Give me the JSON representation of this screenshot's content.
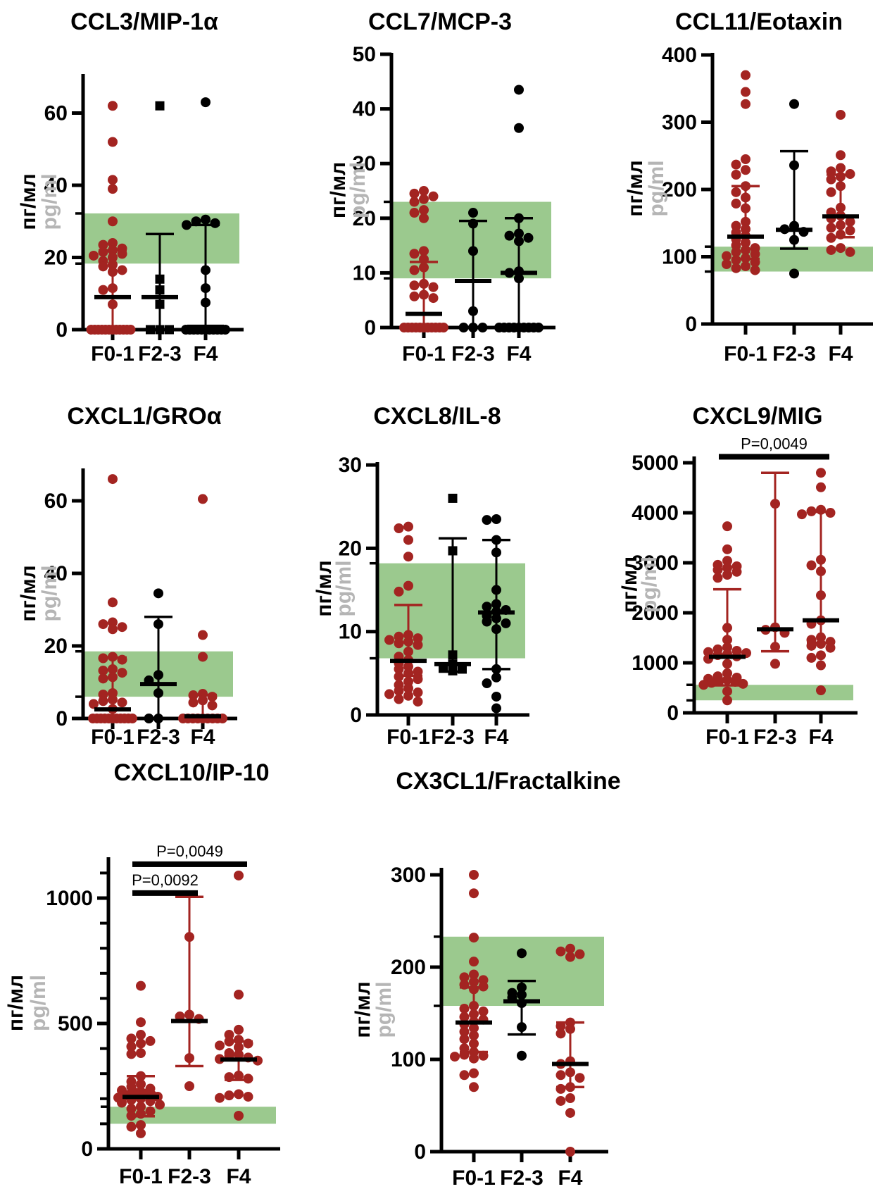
{
  "colors": {
    "red": "#a32421",
    "black": "#000000",
    "band_green": "#9bc98e",
    "gray_label": "#b5b5b5",
    "axis": "#000000"
  },
  "y_axis_label": {
    "ru": "пг/мл",
    "en": "pg/ml"
  },
  "x_categories": [
    "F0-1",
    "F2-3",
    "F4"
  ],
  "chart_data": [
    {
      "id": "ccl3",
      "type": "scatter",
      "title": "CCL3/MIP-1α",
      "ylim": [
        0,
        70
      ],
      "yticks": [
        0,
        20,
        40,
        60
      ],
      "reference_band": [
        18.3,
        32.2
      ],
      "p_annotations": [],
      "groups": [
        {
          "category": "F0-1",
          "marker": "circle",
          "color": "red",
          "values": [
            62,
            52,
            41.5,
            39,
            30,
            24,
            23.5,
            22.5,
            22,
            21.5,
            21,
            20.5,
            20,
            19,
            18,
            17.5,
            16.5,
            16,
            11.5,
            11,
            7,
            0,
            0,
            0,
            0,
            0,
            0,
            0,
            0,
            0,
            0,
            0,
            0
          ],
          "median": 9,
          "q1": 0,
          "q3": 22
        },
        {
          "category": "F2-3",
          "marker": "square",
          "color": "black",
          "values": [
            62,
            14,
            11,
            7,
            0,
            0,
            0
          ],
          "median": 9,
          "q1": 0,
          "q3": 26.5
        },
        {
          "category": "F4",
          "marker": "circle",
          "color": "black",
          "values": [
            63,
            30.5,
            30,
            29.5,
            29,
            16.5,
            11.5,
            7.5,
            0,
            0,
            0,
            0,
            0,
            0,
            0,
            0,
            0,
            0,
            0
          ],
          "median": 0.8,
          "q1": 0,
          "q3": 29
        }
      ]
    },
    {
      "id": "ccl7",
      "type": "scatter",
      "title": "CCL7/MCP-3",
      "ylim": [
        0,
        50
      ],
      "yticks": [
        0,
        10,
        20,
        30,
        40,
        50
      ],
      "reference_band": [
        9,
        23
      ],
      "p_annotations": [],
      "groups": [
        {
          "category": "F0-1",
          "marker": "circle",
          "color": "red",
          "values": [
            25,
            24.5,
            24,
            23.5,
            23,
            21.5,
            21,
            20,
            14,
            13.5,
            12.5,
            11,
            10.5,
            8,
            7.7,
            7.4,
            6,
            5.7,
            5.4,
            0,
            0,
            0,
            0,
            0,
            0,
            0,
            0,
            0,
            0,
            0
          ],
          "median": 2.5,
          "q1": 0,
          "q3": 12
        },
        {
          "category": "F2-3",
          "marker": "circle",
          "color": "black",
          "values": [
            21,
            19,
            14,
            3,
            0,
            0,
            0
          ],
          "median": 8.5,
          "q1": 0,
          "q3": 19.5
        },
        {
          "category": "F4",
          "marker": "circle",
          "color": "black",
          "values": [
            43.5,
            36.5,
            20,
            17.2,
            16.8,
            16.4,
            15.8,
            10.3,
            10,
            9,
            0,
            0,
            0,
            0,
            0,
            0,
            0,
            0,
            0
          ],
          "median": 10,
          "q1": 0,
          "q3": 20
        }
      ]
    },
    {
      "id": "ccl11",
      "type": "scatter",
      "title": "CCL11/Eotaxin",
      "ylim": [
        0,
        400
      ],
      "yticks": [
        0,
        100,
        200,
        300,
        400
      ],
      "reference_band": [
        78,
        115
      ],
      "p_annotations": [],
      "groups": [
        {
          "category": "F0-1",
          "marker": "circle",
          "color": "red",
          "values": [
            370,
            345,
            327,
            245,
            237,
            229,
            222,
            205,
            196,
            188,
            179,
            172,
            152,
            146,
            141,
            136,
            131,
            126,
            121,
            117,
            113,
            110,
            107,
            104,
            101,
            98,
            95,
            92,
            89,
            86,
            83,
            80
          ],
          "median": 130,
          "q1": 97,
          "q3": 205
        },
        {
          "category": "F2-3",
          "marker": "circle",
          "color": "black",
          "values": [
            327,
            236,
            146,
            141,
            137,
            125,
            75
          ],
          "median": 140,
          "q1": 112,
          "q3": 257
        },
        {
          "category": "F4",
          "marker": "circle",
          "color": "red",
          "values": [
            311,
            251,
            232,
            227,
            223,
            219,
            215,
            205,
            196,
            173,
            166,
            161,
            157,
            152,
            147,
            143,
            139,
            133,
            128,
            113,
            110,
            107
          ],
          "median": 160,
          "q1": 129,
          "q3": 222
        }
      ]
    },
    {
      "id": "cxcl1",
      "type": "scatter",
      "title": "CXCL1/GROα",
      "ylim": [
        0,
        70
      ],
      "yticks": [
        0,
        20,
        40,
        60
      ],
      "reference_band": [
        6,
        18.5
      ],
      "p_annotations": [],
      "groups": [
        {
          "category": "F0-1",
          "marker": "circle",
          "color": "red",
          "values": [
            66,
            32,
            26.5,
            26,
            25.2,
            24.6,
            17,
            16.6,
            16.2,
            13.6,
            13.2,
            12.6,
            11.4,
            11,
            7,
            6.6,
            5.2,
            4.8,
            4.4,
            4,
            2.6,
            0,
            0,
            0,
            0,
            0,
            0,
            0,
            0,
            0,
            0,
            0
          ],
          "median": 2.5,
          "q1": 0,
          "q3": 16.8
        },
        {
          "category": "F2-3",
          "marker": "circle",
          "color": "black",
          "values": [
            34.5,
            26,
            12,
            10.5,
            7,
            0,
            0
          ],
          "median": 9.5,
          "q1": 0,
          "q3": 28
        },
        {
          "category": "F4",
          "marker": "circle",
          "color": "red",
          "values": [
            60.5,
            23,
            17,
            6.8,
            6.4,
            6,
            5,
            4.4,
            3.6,
            0,
            0,
            0,
            0,
            0,
            0,
            0,
            0,
            0
          ],
          "median": 0.6,
          "q1": 0,
          "q3": 6.5
        }
      ]
    },
    {
      "id": "cxcl8",
      "type": "scatter",
      "title": "CXCL8/IL-8",
      "ylim": [
        0,
        30
      ],
      "yticks": [
        0,
        10,
        20,
        30
      ],
      "reference_band": [
        6.8,
        18.2
      ],
      "p_annotations": [],
      "groups": [
        {
          "category": "F0-1",
          "marker": "circle",
          "color": "red",
          "values": [
            22.6,
            22.4,
            21,
            19,
            15.5,
            14.8,
            9.6,
            9.4,
            9.2,
            9,
            8.8,
            8.6,
            8.4,
            7.6,
            7,
            6.6,
            6.2,
            5.8,
            5.5,
            5.2,
            5,
            4.6,
            4.3,
            4,
            3.6,
            3.2,
            2.9,
            2.7,
            2.5,
            2.3,
            1.9,
            1.6
          ],
          "median": 6.5,
          "q1": 4.7,
          "q3": 13.2
        },
        {
          "category": "F2-3",
          "marker": "square",
          "color": "black",
          "values": [
            26,
            19.7,
            7.2,
            6.1,
            5.7,
            5.5,
            5.3
          ],
          "median": 6.1,
          "q1": 5.2,
          "q3": 21.2
        },
        {
          "category": "F4",
          "marker": "circle",
          "color": "black",
          "values": [
            23.5,
            23.4,
            21,
            19.5,
            15,
            13.3,
            13,
            12.6,
            12.4,
            11.9,
            11.6,
            11.2,
            11,
            10.3,
            5.5,
            4.5,
            3.8,
            2.2,
            0.8
          ],
          "median": 12.3,
          "q1": 5.5,
          "q3": 21
        }
      ]
    },
    {
      "id": "cxcl9",
      "type": "scatter",
      "title": "CXCL9/MIG",
      "ylim": [
        0,
        5000
      ],
      "yticks": [
        0,
        1000,
        2000,
        3000,
        4000,
        5000
      ],
      "reference_band": [
        250,
        560
      ],
      "p_annotations": [
        {
          "label": "P=0,0049",
          "from": 0,
          "to": 2,
          "y": 5120
        }
      ],
      "groups": [
        {
          "category": "F0-1",
          "marker": "circle",
          "color": "red",
          "values": [
            3730,
            3270,
            3040,
            2960,
            2930,
            2900,
            2860,
            2820,
            2760,
            2700,
            1700,
            1460,
            1310,
            1270,
            1240,
            1215,
            1195,
            1175,
            1155,
            1130,
            1080,
            980,
            790,
            730,
            705,
            680,
            660,
            640,
            620,
            600,
            580,
            560,
            430,
            250
          ],
          "median": 1120,
          "q1": 550,
          "q3": 2470
        },
        {
          "category": "F2-3",
          "marker": "circle",
          "color": "red",
          "values": [
            4180,
            1710,
            1660,
            1600,
            1320,
            980
          ],
          "median": 1670,
          "q1": 1230,
          "q3": 4800
        },
        {
          "category": "F4",
          "marker": "circle",
          "color": "red",
          "values": [
            4800,
            4510,
            4060,
            4030,
            4000,
            3970,
            3060,
            2950,
            2830,
            2350,
            1850,
            1780,
            1510,
            1460,
            1420,
            1380,
            1340,
            1300,
            1150,
            1100,
            950,
            450
          ],
          "median": 1850,
          "q1": 1400,
          "q3": 4020
        }
      ]
    },
    {
      "id": "cxcl10",
      "type": "scatter",
      "title": "CXCL10/IP-10",
      "ylim": [
        0,
        1160
      ],
      "yticks": [
        0,
        500,
        1000
      ],
      "minor_ticks": [
        100,
        200,
        300,
        400,
        600,
        700,
        800,
        900,
        1100
      ],
      "reference_band": [
        100,
        168
      ],
      "p_annotations": [
        {
          "label": "P=0,0049",
          "from": 0,
          "to": 2,
          "y": 1135
        },
        {
          "label": "P=0,0092",
          "from": 0,
          "to": 1,
          "y": 1020
        }
      ],
      "groups": [
        {
          "category": "F0-1",
          "marker": "circle",
          "color": "red",
          "values": [
            650,
            505,
            455,
            440,
            430,
            420,
            408,
            382,
            378,
            290,
            268,
            258,
            248,
            240,
            233,
            228,
            224,
            220,
            217,
            214,
            211,
            208,
            204,
            200,
            195,
            190,
            184,
            176,
            168,
            160,
            150,
            140,
            132,
            95,
            88,
            62
          ],
          "median": 207,
          "q1": 130,
          "q3": 290
        },
        {
          "category": "F2-3",
          "marker": "circle",
          "color": "red",
          "values": [
            845,
            535,
            528,
            518,
            362,
            250
          ],
          "median": 510,
          "q1": 330,
          "q3": 1005
        },
        {
          "category": "F4",
          "marker": "circle",
          "color": "red",
          "values": [
            1090,
            615,
            475,
            455,
            435,
            428,
            420,
            412,
            405,
            382,
            376,
            370,
            364,
            358,
            352,
            292,
            286,
            280,
            218,
            213,
            208,
            203,
            132
          ],
          "median": 356,
          "q1": 275,
          "q3": 428
        }
      ]
    },
    {
      "id": "cx3cl1",
      "type": "scatter",
      "title": "CX3CL1/Fractalkine",
      "ylim": [
        0,
        310
      ],
      "yticks": [
        0,
        100,
        200,
        300
      ],
      "reference_band": [
        158,
        233
      ],
      "p_annotations": [],
      "groups": [
        {
          "category": "F0-1",
          "marker": "circle",
          "color": "red",
          "values": [
            300,
            280,
            232,
            206,
            192,
            189,
            186,
            184,
            181,
            179,
            176,
            158,
            155,
            152,
            149,
            146,
            143,
            141,
            138,
            134,
            130,
            126,
            122,
            117,
            112,
            108,
            105,
            104,
            103,
            101,
            85,
            83,
            70
          ],
          "median": 140,
          "q1": 108,
          "q3": 178
        },
        {
          "category": "F2-3",
          "marker": "circle",
          "color": "black",
          "values": [
            215,
            178,
            172,
            170,
            167,
            161,
            135,
            104
          ],
          "median": 163,
          "q1": 127,
          "q3": 185
        },
        {
          "category": "F4",
          "marker": "circle",
          "color": "red",
          "values": [
            220,
            217,
            214,
            211,
            140,
            136,
            133,
            128,
            98,
            95,
            86,
            83,
            80,
            70,
            68,
            58,
            55,
            42,
            0
          ],
          "median": 95,
          "q1": 70,
          "q3": 140
        }
      ]
    }
  ]
}
